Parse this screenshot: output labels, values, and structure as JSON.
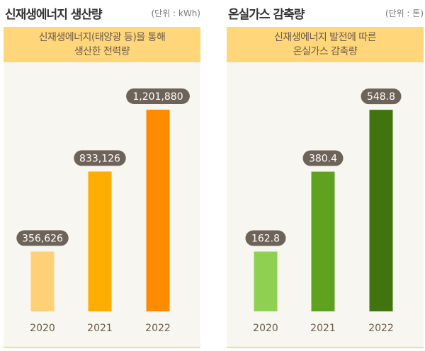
{
  "chart_data": [
    {
      "type": "bar",
      "title": "신재생에너지 생산량",
      "unit_label": "(단위 : kWh)",
      "subtitle": [
        "신재생에너지(태양광 등)을 통해",
        "생산한 전력량"
      ],
      "categories": [
        "2020",
        "2021",
        "2022"
      ],
      "values": [
        356626,
        833126,
        1201880
      ],
      "value_labels": [
        "356,626",
        "833,126",
        "1,201,880"
      ],
      "colors": [
        "#ffd177",
        "#ffad00",
        "#ff8c00"
      ],
      "ylim": [
        0,
        1265000
      ],
      "grid": false
    },
    {
      "type": "bar",
      "title": "온실가스 감축량",
      "unit_label": "(단위 : 톤)",
      "subtitle": [
        "신재생에너지 발전에 따른",
        "온실가스 감축량"
      ],
      "categories": [
        "2020",
        "2021",
        "2022"
      ],
      "values": [
        162.8,
        380.4,
        548.8
      ],
      "value_labels": [
        "162.8",
        "380.4",
        "548.8"
      ],
      "colors": [
        "#8fd052",
        "#5ea220",
        "#3f740e"
      ],
      "ylim": [
        0,
        578
      ],
      "grid": false
    }
  ]
}
